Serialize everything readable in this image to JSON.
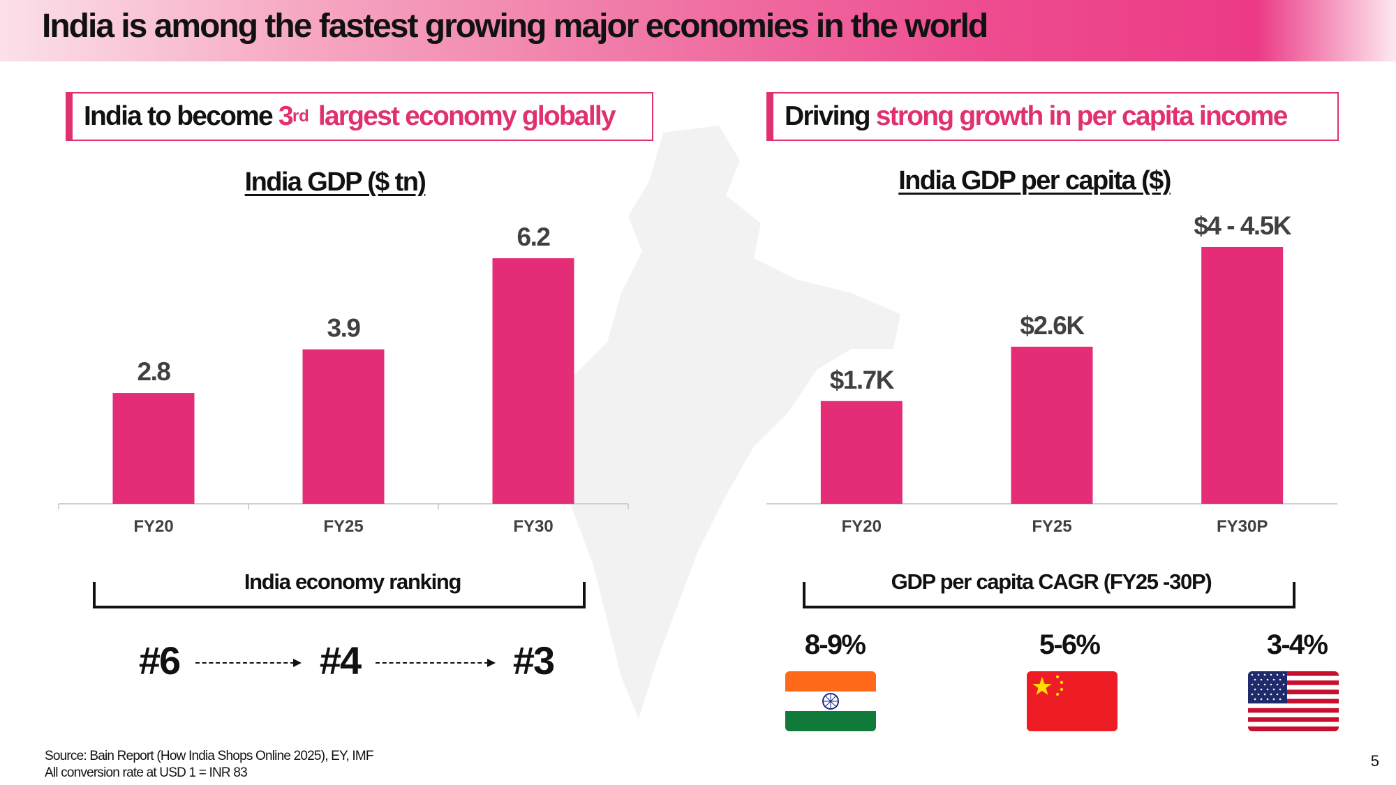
{
  "slide": {
    "title": "India is among the fastest growing major economies in the world",
    "page_number": "5",
    "source_line1": "Source: Bain Report (How India Shops Online 2025), EY, IMF",
    "source_line2": "All conversion rate at USD 1 = INR 83"
  },
  "left": {
    "box_pre": "India to become ",
    "box_num": "3",
    "box_sup": "rd",
    "box_post": " largest economy globally",
    "ranking_title": "India economy ranking",
    "ranks": [
      "#6",
      "#4",
      "#3"
    ]
  },
  "right": {
    "box_pre": "Driving ",
    "box_pink": "strong growth in per capita income",
    "cagr_title": "GDP per capita CAGR (FY25 -30P)",
    "cagr": [
      {
        "value": "8-9%",
        "flag": "india-flag-icon"
      },
      {
        "value": "5-6%",
        "flag": "china-flag-icon"
      },
      {
        "value": "3-4%",
        "flag": "usa-flag-icon"
      }
    ]
  },
  "colors": {
    "accent": "#e0306f",
    "bar": "#e42d76",
    "axis_text": "#404040"
  },
  "chart_data": [
    {
      "type": "bar",
      "title": "India GDP ($ tn)",
      "categories": [
        "FY20",
        "FY25",
        "FY30"
      ],
      "values": [
        2.8,
        3.9,
        6.2
      ],
      "labels": [
        "2.8",
        "3.9",
        "6.2"
      ],
      "ylim": [
        0,
        7.4
      ],
      "grid": false
    },
    {
      "type": "bar",
      "title": "India GDP per capita ($)",
      "categories": [
        "FY20",
        "FY25",
        "FY30P"
      ],
      "values": [
        1700,
        2600,
        4250
      ],
      "labels": [
        "$1.7K",
        "$2.6K",
        "$4 - 4.5K"
      ],
      "ylim": [
        0,
        4850
      ],
      "grid": false
    }
  ]
}
